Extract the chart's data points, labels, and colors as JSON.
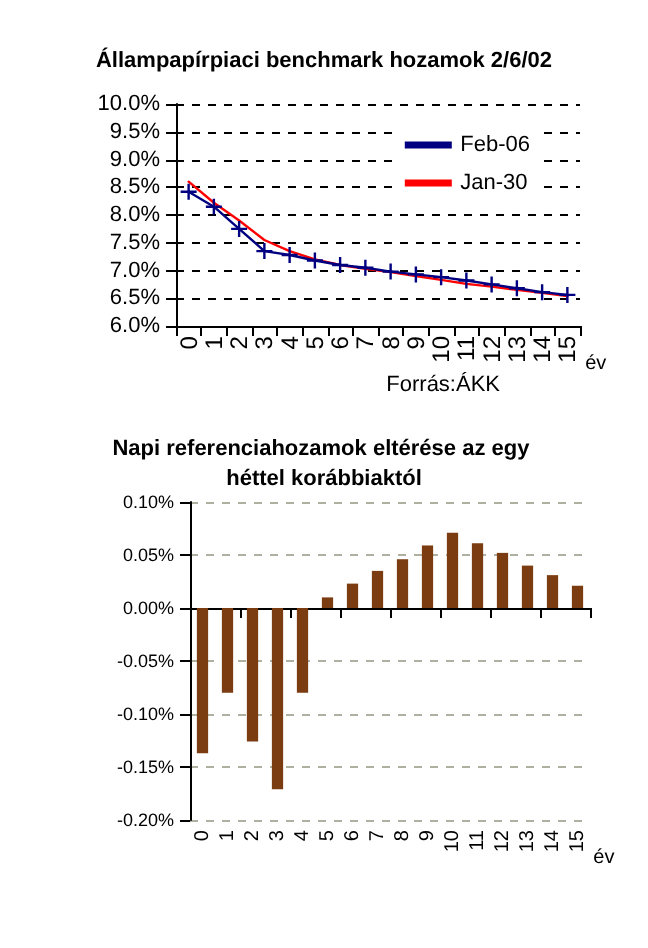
{
  "chart_data": [
    {
      "type": "line",
      "title": "Állampapírpiaci benchmark hozamok 2/6/02",
      "xlabel": "év",
      "categories": [
        "0",
        "1",
        "2",
        "3",
        "4",
        "5",
        "6",
        "7",
        "8",
        "9",
        "10",
        "11",
        "12",
        "13",
        "14",
        "15"
      ],
      "series": [
        {
          "name": "Feb-06",
          "color": "#000080",
          "marker": "cross",
          "values": [
            8.42,
            8.15,
            7.75,
            7.35,
            7.28,
            7.18,
            7.1,
            7.05,
            6.98,
            6.93,
            6.88,
            6.82,
            6.75,
            6.68,
            6.61,
            6.56
          ]
        },
        {
          "name": "Jan-30",
          "color": "#ff0000",
          "marker": "none",
          "values": [
            8.6,
            8.22,
            7.9,
            7.55,
            7.35,
            7.2,
            7.1,
            7.03,
            6.97,
            6.9,
            6.83,
            6.76,
            6.71,
            6.65,
            6.6,
            6.54
          ]
        }
      ],
      "ylim": [
        6,
        10
      ],
      "yticks": [
        {
          "value": 6,
          "label": "6.0%"
        },
        {
          "value": 6.5,
          "label": "6.5%"
        },
        {
          "value": 7,
          "label": "7.0%"
        },
        {
          "value": 7.5,
          "label": "7.5%"
        },
        {
          "value": 8,
          "label": "8.0%"
        },
        {
          "value": 8.5,
          "label": "8.5%"
        },
        {
          "value": 9,
          "label": "9.0%"
        },
        {
          "value": 9.5,
          "label": "9.5%"
        },
        {
          "value": 10,
          "label": "10.0%"
        }
      ],
      "grid": "y",
      "legend": "top right",
      "annotations": [
        "Forrás:ÁKK"
      ]
    },
    {
      "type": "bar",
      "title": "Napi referenciahozamok eltérése az egy héttel korábbiaktól",
      "xlabel": "év",
      "categories": [
        "0",
        "1",
        "2",
        "3",
        "4",
        "5",
        "6",
        "7",
        "8",
        "9",
        "10",
        "11",
        "12",
        "13",
        "14",
        "15"
      ],
      "series": [
        {
          "color": "#7a3c10",
          "values": [
            -0.137,
            -0.08,
            -0.126,
            -0.171,
            -0.08,
            0.01,
            0.023,
            0.035,
            0.046,
            0.059,
            0.071,
            0.061,
            0.052,
            0.04,
            0.031,
            0.021
          ]
        }
      ],
      "ylim": [
        -0.2,
        0.1
      ],
      "yticks": [
        {
          "value": -0.2,
          "label": "-0.20%"
        },
        {
          "value": -0.15,
          "label": "-0.15%"
        },
        {
          "value": -0.1,
          "label": "-0.10%"
        },
        {
          "value": -0.05,
          "label": "-0.05%"
        },
        {
          "value": 0,
          "label": "0.00%"
        },
        {
          "value": 0.05,
          "label": "0.05%"
        },
        {
          "value": 0.1,
          "label": "0.10%"
        }
      ],
      "grid": "y"
    }
  ]
}
